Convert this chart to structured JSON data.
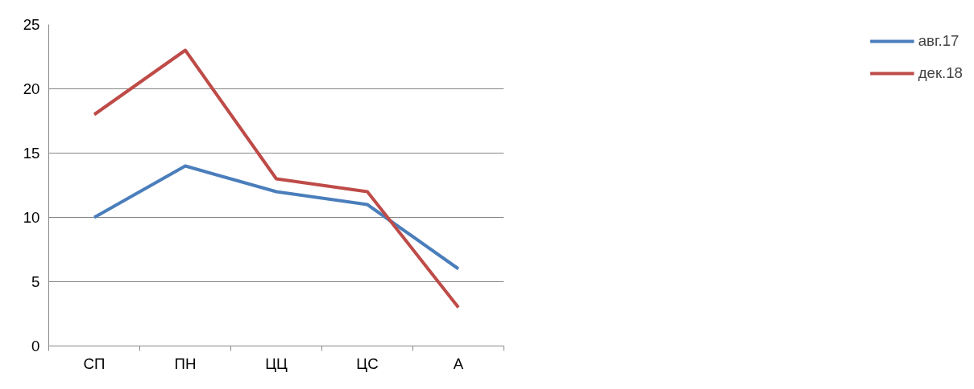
{
  "chart_data": {
    "type": "line",
    "categories": [
      "СП",
      "ПН",
      "ЦЦ",
      "ЦС",
      "А"
    ],
    "series": [
      {
        "name": "авг.17",
        "color": "#4a7ebb",
        "values": [
          10,
          14,
          12,
          11,
          6
        ]
      },
      {
        "name": "дек.18",
        "color": "#be4b48",
        "values": [
          18,
          23,
          13,
          12,
          3
        ]
      }
    ],
    "ylim": [
      0,
      25
    ],
    "yticks": [
      0,
      5,
      10,
      15,
      20,
      25
    ],
    "grid": "y",
    "legend": "right",
    "marker": "none",
    "line_style": "solid"
  }
}
